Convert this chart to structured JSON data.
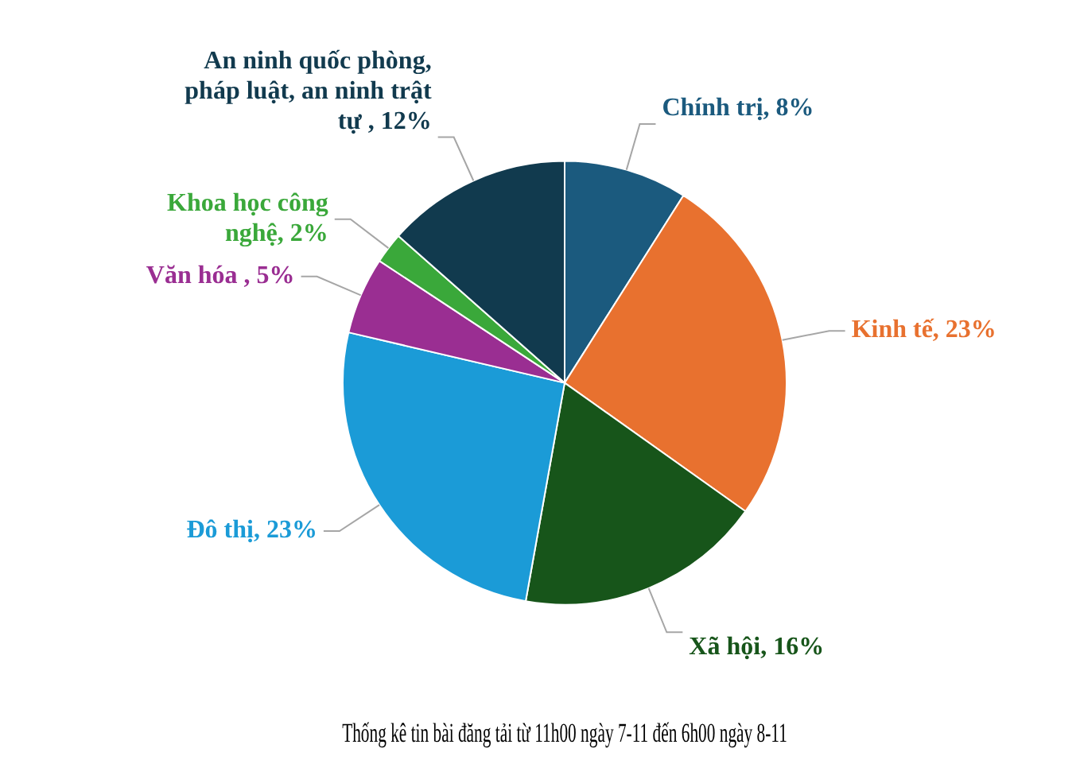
{
  "chart_data": {
    "type": "pie",
    "title": "Thống kê tin bài đăng tải từ 11h00 ngày 7-11 đến 6h00 ngày 8-11",
    "categories": [
      "Chính trị",
      "Kinh tế",
      "Xã hội",
      "Đô thị",
      "Văn hóa ",
      "Khoa học công nghệ",
      "An ninh quốc phòng, pháp luật, an ninh trật tự "
    ],
    "values": [
      8,
      23,
      16,
      23,
      5,
      2,
      12
    ],
    "value_labels": [
      "8%",
      "23%",
      "16%",
      "23%",
      "5%",
      "2%",
      "12%"
    ],
    "colors": [
      "#1b5a7e",
      "#e8712f",
      "#17551a",
      "#1b9bd7",
      "#9a2e92",
      "#3aa83a",
      "#113a4e"
    ]
  }
}
